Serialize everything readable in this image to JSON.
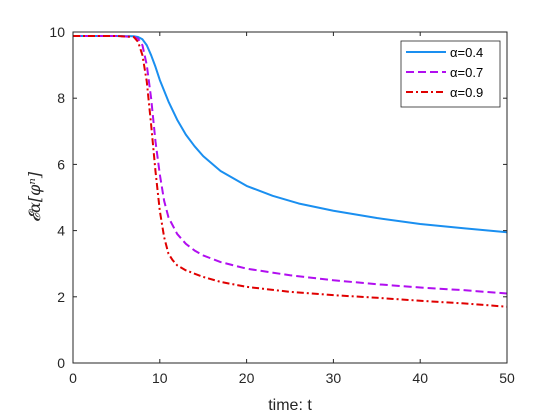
{
  "chart_data": {
    "type": "line",
    "title": "",
    "xlabel": "time: t",
    "ylabel": "𝓔α[φⁿ]",
    "xlim": [
      0,
      50
    ],
    "ylim": [
      0,
      10
    ],
    "xticks": [
      0,
      10,
      20,
      30,
      40,
      50
    ],
    "yticks": [
      0,
      2,
      4,
      6,
      8,
      10
    ],
    "grid": false,
    "legend_position": "top-right",
    "series": [
      {
        "name": "α=0.4",
        "color": "#1a8ff0",
        "style": "solid",
        "x": [
          0,
          5,
          7,
          7.5,
          8,
          8.5,
          9,
          9.5,
          10,
          11,
          12,
          13,
          14,
          15,
          17,
          20,
          23,
          26,
          30,
          35,
          40,
          45,
          50
        ],
        "y": [
          9.88,
          9.88,
          9.87,
          9.85,
          9.78,
          9.6,
          9.3,
          8.95,
          8.55,
          7.9,
          7.35,
          6.9,
          6.55,
          6.25,
          5.8,
          5.35,
          5.05,
          4.82,
          4.6,
          4.38,
          4.2,
          4.07,
          3.95
        ]
      },
      {
        "name": "α=0.7",
        "color": "#b10ef0",
        "style": "dashed",
        "x": [
          0,
          5,
          7,
          7.5,
          8,
          8.5,
          9,
          9.5,
          10,
          10.5,
          11,
          12,
          13,
          14,
          15,
          17,
          20,
          25,
          30,
          35,
          40,
          45,
          50
        ],
        "y": [
          9.88,
          9.88,
          9.85,
          9.8,
          9.6,
          9.0,
          8.0,
          6.7,
          5.7,
          4.9,
          4.4,
          3.9,
          3.6,
          3.4,
          3.25,
          3.05,
          2.85,
          2.65,
          2.5,
          2.38,
          2.28,
          2.2,
          2.1
        ]
      },
      {
        "name": "α=0.9",
        "color": "#e00000",
        "style": "dashdot",
        "x": [
          0,
          5,
          7,
          7.5,
          8,
          8.5,
          9,
          9.5,
          10,
          10.5,
          11,
          11.5,
          12,
          13,
          14,
          15,
          17,
          20,
          25,
          30,
          35,
          40,
          45,
          50
        ],
        "y": [
          9.88,
          9.88,
          9.85,
          9.7,
          9.3,
          8.5,
          7.2,
          5.8,
          4.6,
          3.8,
          3.3,
          3.1,
          2.95,
          2.8,
          2.7,
          2.6,
          2.45,
          2.3,
          2.15,
          2.05,
          1.97,
          1.88,
          1.8,
          1.7
        ]
      }
    ]
  }
}
